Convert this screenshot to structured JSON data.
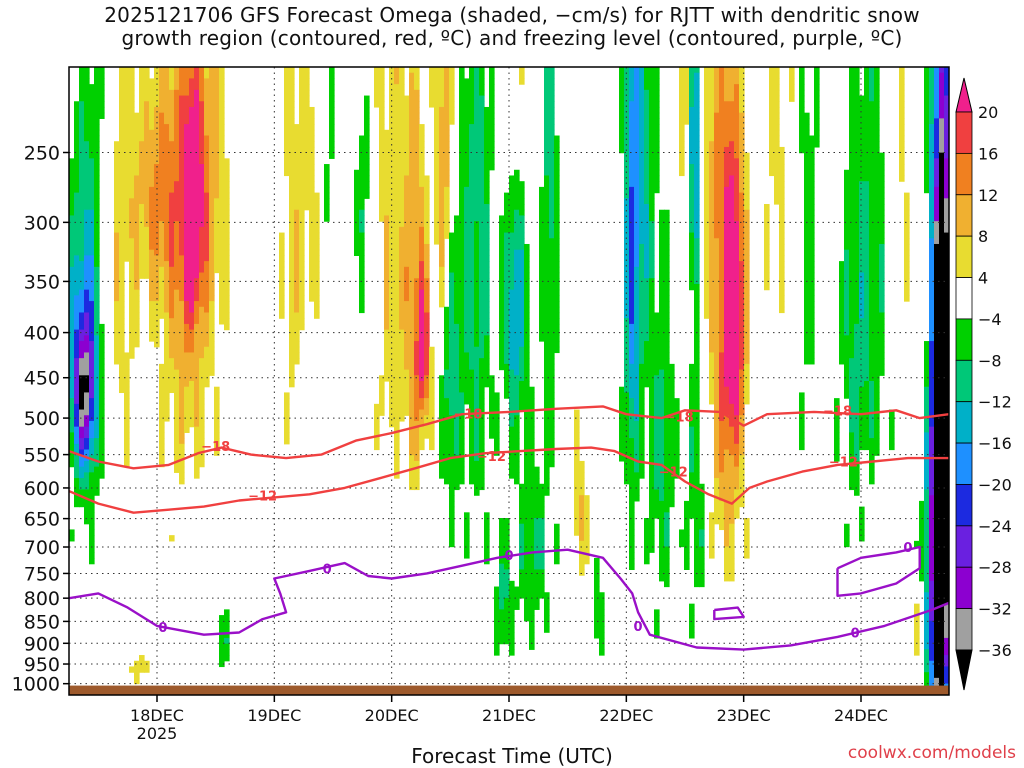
{
  "header": {
    "title_line1": "2025121706 GFS Forecast Omega (shaded, −cm/s) for RJTT with dendritic snow",
    "title_line2": "growth region (contoured, red, ºC) and freezing level (contoured, purple, ºC)"
  },
  "footer": {
    "xlabel": "Forecast Time (UTC)",
    "credit": "coolwx.com/models"
  },
  "chart_data": {
    "type": "heatmap",
    "title": "2025121706 GFS Forecast Omega (shaded, −cm/s) for RJTT with dendritic snow growth region (contoured, red, ºC) and freezing level (contoured, purple, ºC)",
    "xlabel": "Forecast Time (UTC)",
    "ylabel": "",
    "x_range_days": [
      17.25,
      24.75
    ],
    "x_ticks": [
      {
        "day": 18,
        "label": "18DEC",
        "sub": "2025"
      },
      {
        "day": 19,
        "label": "19DEC",
        "sub": ""
      },
      {
        "day": 20,
        "label": "20DEC",
        "sub": ""
      },
      {
        "day": 21,
        "label": "21DEC",
        "sub": ""
      },
      {
        "day": 22,
        "label": "22DEC",
        "sub": ""
      },
      {
        "day": 23,
        "label": "23DEC",
        "sub": ""
      },
      {
        "day": 24,
        "label": "24DEC",
        "sub": ""
      }
    ],
    "y_axis": "pressure (hPa, log)",
    "y_range": [
      200,
      1030
    ],
    "y_ticks": [
      250,
      300,
      350,
      400,
      450,
      500,
      550,
      600,
      650,
      700,
      750,
      800,
      850,
      900,
      950,
      1000
    ],
    "grid": true,
    "colorbar": {
      "levels": [
        -36,
        -32,
        -28,
        -24,
        -20,
        -16,
        -12,
        -8,
        -4,
        4,
        8,
        12,
        16,
        20
      ],
      "labels": [
        "20",
        "16",
        "12",
        "8",
        "4",
        "−4",
        "−8",
        "−12",
        "−16",
        "−20",
        "−24",
        "−28",
        "−32",
        "−36"
      ],
      "colors": [
        "#000000",
        "#a0a0a0",
        "#8c00d0",
        "#6a20e0",
        "#1c2ae0",
        "#1e90ff",
        "#00b0c8",
        "#00c878",
        "#00d000",
        "#ffffff",
        "#e8dc30",
        "#f0b030",
        "#f08020",
        "#f04040",
        "#f0208c"
      ],
      "low_color": "#000000",
      "high_color": "#f0208c"
    },
    "omega_blobs": [
      {
        "d": 17.35,
        "p": 420,
        "dd": 0.1,
        "dp": 120,
        "v": -14
      },
      {
        "d": 17.38,
        "p": 470,
        "dd": 0.06,
        "dp": 60,
        "v": -22
      },
      {
        "d": 17.45,
        "p": 360,
        "dd": 0.08,
        "dp": 200,
        "v": -6
      },
      {
        "d": 17.7,
        "p": 330,
        "dd": 0.1,
        "dp": 160,
        "v": 6
      },
      {
        "d": 18.0,
        "p": 280,
        "dd": 0.15,
        "dp": 60,
        "v": 10
      },
      {
        "d": 18.25,
        "p": 330,
        "dd": 0.16,
        "dp": 170,
        "v": 11
      },
      {
        "d": 18.3,
        "p": 290,
        "dd": 0.06,
        "dp": 60,
        "v": 18
      },
      {
        "d": 18.45,
        "p": 270,
        "dd": 0.12,
        "dp": 80,
        "v": 7
      },
      {
        "d": 18.55,
        "p": 900,
        "dd": 0.06,
        "dp": 50,
        "v": -7
      },
      {
        "d": 17.85,
        "p": 960,
        "dd": 0.08,
        "dp": 25,
        "v": 6
      },
      {
        "d": 19.15,
        "p": 340,
        "dd": 0.07,
        "dp": 130,
        "v": 5
      },
      {
        "d": 19.3,
        "p": 260,
        "dd": 0.1,
        "dp": 100,
        "v": 5
      },
      {
        "d": 19.45,
        "p": 250,
        "dd": 0.05,
        "dp": 60,
        "v": -6
      },
      {
        "d": 19.75,
        "p": 280,
        "dd": 0.05,
        "dp": 60,
        "v": -7
      },
      {
        "d": 20.0,
        "p": 330,
        "dd": 0.1,
        "dp": 170,
        "v": 7
      },
      {
        "d": 20.2,
        "p": 380,
        "dd": 0.07,
        "dp": 150,
        "v": 11
      },
      {
        "d": 20.27,
        "p": 420,
        "dd": 0.04,
        "dp": 60,
        "v": 17
      },
      {
        "d": 20.45,
        "p": 260,
        "dd": 0.05,
        "dp": 100,
        "v": 14
      },
      {
        "d": 20.5,
        "p": 430,
        "dd": 0.06,
        "dp": 120,
        "v": -12
      },
      {
        "d": 20.72,
        "p": 320,
        "dd": 0.1,
        "dp": 220,
        "v": -10
      },
      {
        "d": 21.05,
        "p": 250,
        "dd": 0.08,
        "dp": 100,
        "v": 7
      },
      {
        "d": 21.05,
        "p": 360,
        "dd": 0.07,
        "dp": 90,
        "v": -20
      },
      {
        "d": 21.2,
        "p": 700,
        "dd": 0.12,
        "dp": 130,
        "v": -8
      },
      {
        "d": 20.95,
        "p": 820,
        "dd": 0.05,
        "dp": 90,
        "v": -9
      },
      {
        "d": 21.35,
        "p": 290,
        "dd": 0.05,
        "dp": 120,
        "v": -10
      },
      {
        "d": 21.6,
        "p": 640,
        "dd": 0.05,
        "dp": 80,
        "v": 9
      },
      {
        "d": 21.75,
        "p": 830,
        "dd": 0.04,
        "dp": 70,
        "v": -8
      },
      {
        "d": 22.05,
        "p": 320,
        "dd": 0.05,
        "dp": 200,
        "v": -18
      },
      {
        "d": 22.15,
        "p": 250,
        "dd": 0.06,
        "dp": 120,
        "v": -10
      },
      {
        "d": 22.3,
        "p": 530,
        "dd": 0.08,
        "dp": 180,
        "v": -9
      },
      {
        "d": 22.5,
        "p": 250,
        "dd": 0.08,
        "dp": 100,
        "v": 5
      },
      {
        "d": 22.58,
        "p": 260,
        "dd": 0.03,
        "dp": 80,
        "v": -22
      },
      {
        "d": 22.6,
        "p": 600,
        "dd": 0.07,
        "dp": 160,
        "v": -8
      },
      {
        "d": 22.8,
        "p": 250,
        "dd": 0.1,
        "dp": 70,
        "v": 6
      },
      {
        "d": 22.85,
        "p": 380,
        "dd": 0.12,
        "dp": 160,
        "v": 10
      },
      {
        "d": 22.92,
        "p": 380,
        "dd": 0.06,
        "dp": 90,
        "v": 19
      },
      {
        "d": 22.85,
        "p": 560,
        "dd": 0.1,
        "dp": 170,
        "v": 6
      },
      {
        "d": 23.3,
        "p": 260,
        "dd": 0.1,
        "dp": 80,
        "v": 5
      },
      {
        "d": 23.55,
        "p": 300,
        "dd": 0.07,
        "dp": 150,
        "v": -6
      },
      {
        "d": 23.95,
        "p": 420,
        "dd": 0.1,
        "dp": 150,
        "v": -7
      },
      {
        "d": 24.1,
        "p": 330,
        "dd": 0.12,
        "dp": 170,
        "v": -6
      },
      {
        "d": 24.35,
        "p": 260,
        "dd": 0.05,
        "dp": 100,
        "v": 5
      },
      {
        "d": 24.45,
        "p": 860,
        "dd": 0.05,
        "dp": 60,
        "v": 6
      },
      {
        "d": 24.55,
        "p": 420,
        "dd": 0.04,
        "dp": 120,
        "v": 5
      },
      {
        "d": 24.72,
        "p": 350,
        "dd": 0.03,
        "dp": 300,
        "v": -10
      },
      {
        "d": 24.65,
        "p": 650,
        "dd": 0.07,
        "dp": 350,
        "v": -30
      },
      {
        "d": 24.68,
        "p": 700,
        "dd": 0.04,
        "dp": 280,
        "v": -40
      },
      {
        "d": 24.7,
        "p": 420,
        "dd": 0.03,
        "dp": 90,
        "v": -40
      }
    ],
    "contours": [
      {
        "name": "-18",
        "color": "#f04040",
        "label_color": "#f04040",
        "points": [
          [
            17.25,
            545
          ],
          [
            17.5,
            560
          ],
          [
            17.8,
            570
          ],
          [
            18.1,
            565
          ],
          [
            18.35,
            548
          ],
          [
            18.55,
            540
          ],
          [
            18.8,
            550
          ],
          [
            19.1,
            555
          ],
          [
            19.4,
            550
          ],
          [
            19.7,
            530
          ],
          [
            20.0,
            520
          ],
          [
            20.3,
            508
          ],
          [
            20.6,
            495
          ],
          [
            21.0,
            492
          ],
          [
            21.4,
            488
          ],
          [
            21.8,
            485
          ],
          [
            22.0,
            495
          ],
          [
            22.3,
            500
          ],
          [
            22.5,
            490
          ],
          [
            22.8,
            492
          ],
          [
            23.0,
            510
          ],
          [
            23.2,
            495
          ],
          [
            23.6,
            492
          ],
          [
            24.0,
            495
          ],
          [
            24.3,
            490
          ],
          [
            24.5,
            500
          ],
          [
            24.75,
            495
          ]
        ],
        "labels": [
          {
            "d": 18.5,
            "p": 538,
            "text": "−18"
          },
          {
            "d": 20.65,
            "p": 494,
            "text": "−18"
          },
          {
            "d": 22.45,
            "p": 498,
            "text": "−18"
          },
          {
            "d": 23.8,
            "p": 490,
            "text": "−18"
          }
        ]
      },
      {
        "name": "-12",
        "color": "#f04040",
        "label_color": "#f04040",
        "points": [
          [
            17.25,
            605
          ],
          [
            17.5,
            625
          ],
          [
            17.8,
            640
          ],
          [
            18.1,
            635
          ],
          [
            18.4,
            630
          ],
          [
            18.7,
            620
          ],
          [
            19.0,
            615
          ],
          [
            19.3,
            610
          ],
          [
            19.6,
            600
          ],
          [
            19.9,
            585
          ],
          [
            20.2,
            570
          ],
          [
            20.5,
            555
          ],
          [
            20.8,
            548
          ],
          [
            21.1,
            545
          ],
          [
            21.4,
            542
          ],
          [
            21.7,
            540
          ],
          [
            21.9,
            545
          ],
          [
            22.1,
            560
          ],
          [
            22.3,
            565
          ],
          [
            22.5,
            590
          ],
          [
            22.7,
            610
          ],
          [
            22.9,
            625
          ],
          [
            23.05,
            600
          ],
          [
            23.2,
            590
          ],
          [
            23.5,
            575
          ],
          [
            23.8,
            565
          ],
          [
            24.1,
            560
          ],
          [
            24.4,
            555
          ],
          [
            24.75,
            555
          ]
        ],
        "labels": [
          {
            "d": 18.9,
            "p": 612,
            "text": "−12"
          },
          {
            "d": 20.85,
            "p": 552,
            "text": "−12"
          },
          {
            "d": 22.4,
            "p": 575,
            "text": "−12"
          },
          {
            "d": 23.85,
            "p": 560,
            "text": "−12"
          }
        ]
      },
      {
        "name": "0",
        "color": "#9a10c8",
        "label_color": "#9a10c8",
        "points": [
          [
            17.25,
            800
          ],
          [
            17.5,
            790
          ],
          [
            17.75,
            820
          ],
          [
            18.0,
            860
          ],
          [
            18.4,
            880
          ],
          [
            18.7,
            875
          ],
          [
            18.9,
            845
          ],
          [
            19.1,
            830
          ],
          [
            19.05,
            790
          ],
          [
            19.0,
            760
          ],
          [
            19.3,
            745
          ],
          [
            19.6,
            730
          ],
          [
            19.8,
            755
          ],
          [
            20.0,
            760
          ],
          [
            20.3,
            750
          ],
          [
            20.6,
            735
          ],
          [
            20.9,
            720
          ],
          [
            21.2,
            710
          ],
          [
            21.5,
            705
          ],
          [
            21.8,
            720
          ],
          [
            21.95,
            760
          ],
          [
            22.05,
            790
          ],
          [
            22.1,
            830
          ],
          [
            22.2,
            880
          ],
          [
            22.6,
            910
          ],
          [
            23.0,
            915
          ],
          [
            23.4,
            905
          ],
          [
            23.8,
            885
          ],
          [
            24.2,
            860
          ],
          [
            24.6,
            825
          ],
          [
            24.75,
            810
          ]
        ],
        "labels": [
          {
            "d": 18.05,
            "p": 862,
            "text": "0"
          },
          {
            "d": 19.45,
            "p": 740,
            "text": "0"
          },
          {
            "d": 21.0,
            "p": 715,
            "text": "0"
          },
          {
            "d": 22.1,
            "p": 860,
            "text": "0"
          },
          {
            "d": 23.95,
            "p": 875,
            "text": "0"
          }
        ]
      },
      {
        "name": "0b",
        "color": "#9a10c8",
        "label_color": "#9a10c8",
        "points": [
          [
            23.8,
            740
          ],
          [
            24.0,
            720
          ],
          [
            24.3,
            710
          ],
          [
            24.5,
            700
          ],
          [
            24.5,
            740
          ],
          [
            24.3,
            770
          ],
          [
            24.0,
            790
          ],
          [
            23.8,
            795
          ],
          [
            23.8,
            740
          ]
        ],
        "labels": [
          {
            "d": 24.4,
            "p": 700,
            "text": "0"
          }
        ]
      },
      {
        "name": "0c",
        "color": "#9a10c8",
        "label_color": "#9a10c8",
        "points": [
          [
            22.75,
            825
          ],
          [
            22.95,
            820
          ],
          [
            23.0,
            840
          ],
          [
            22.75,
            845
          ],
          [
            22.75,
            825
          ]
        ],
        "labels": []
      }
    ],
    "ground": {
      "color": "#9e5a2c",
      "pressure_top": 1005
    }
  }
}
